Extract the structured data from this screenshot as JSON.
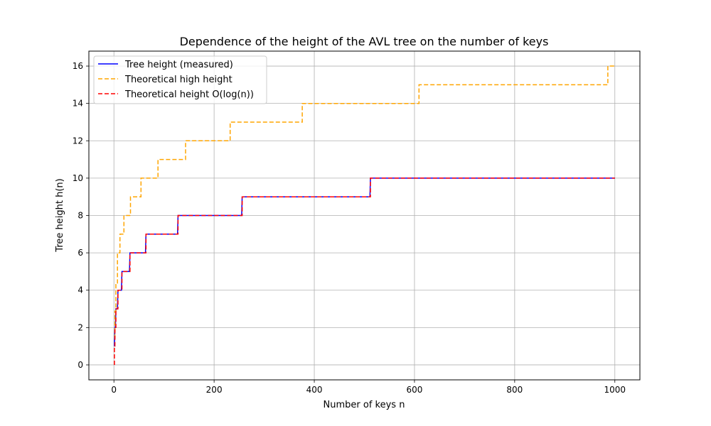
{
  "chart_data": {
    "type": "line",
    "title": "Dependence of the height of the AVL tree on the number of keys",
    "xlabel": "Number of keys n",
    "ylabel": "Tree height h(n)",
    "xlim": [
      -50,
      1050
    ],
    "ylim": [
      -0.8,
      16.8
    ],
    "xticks": [
      0,
      200,
      400,
      600,
      800,
      1000
    ],
    "yticks": [
      0,
      2,
      4,
      6,
      8,
      10,
      12,
      14,
      16
    ],
    "grid": true,
    "legend_position": "top-left",
    "series": [
      {
        "name": "Tree height (measured)",
        "color": "#0000ff",
        "style": "solid",
        "x": [
          1,
          2,
          3,
          4,
          7,
          8,
          15,
          16,
          31,
          32,
          63,
          64,
          127,
          128,
          255,
          256,
          511,
          512,
          1000
        ],
        "y": [
          1,
          2,
          2,
          3,
          3,
          4,
          4,
          5,
          5,
          6,
          6,
          7,
          7,
          8,
          8,
          9,
          9,
          10,
          10
        ]
      },
      {
        "name": "Theoretical high height",
        "color": "#ffa500",
        "style": "dashed",
        "x": [
          1,
          2,
          2,
          4,
          4,
          7,
          7,
          12,
          12,
          20,
          20,
          33,
          33,
          54,
          54,
          88,
          88,
          143,
          143,
          232,
          232,
          376,
          376,
          609,
          609,
          986,
          986,
          1000
        ],
        "y": [
          1.44,
          1.44,
          2.88,
          2.88,
          4.3,
          4.3,
          6,
          6,
          7,
          7,
          8,
          8,
          9,
          9,
          10,
          10,
          11,
          11,
          12,
          12,
          13,
          13,
          14,
          14,
          15,
          15,
          16,
          16
        ]
      },
      {
        "name": "Theoretical height O(log(n))",
        "color": "#ff0000",
        "style": "dashed",
        "x": [
          1,
          1,
          2,
          2,
          4,
          4,
          8,
          8,
          16,
          16,
          32,
          32,
          64,
          64,
          128,
          128,
          256,
          256,
          512,
          512,
          1000
        ],
        "y": [
          0,
          1,
          1,
          2,
          2,
          3,
          3,
          4,
          4,
          5,
          5,
          6,
          6,
          7,
          7,
          8,
          8,
          9,
          9,
          10,
          10
        ]
      }
    ]
  }
}
